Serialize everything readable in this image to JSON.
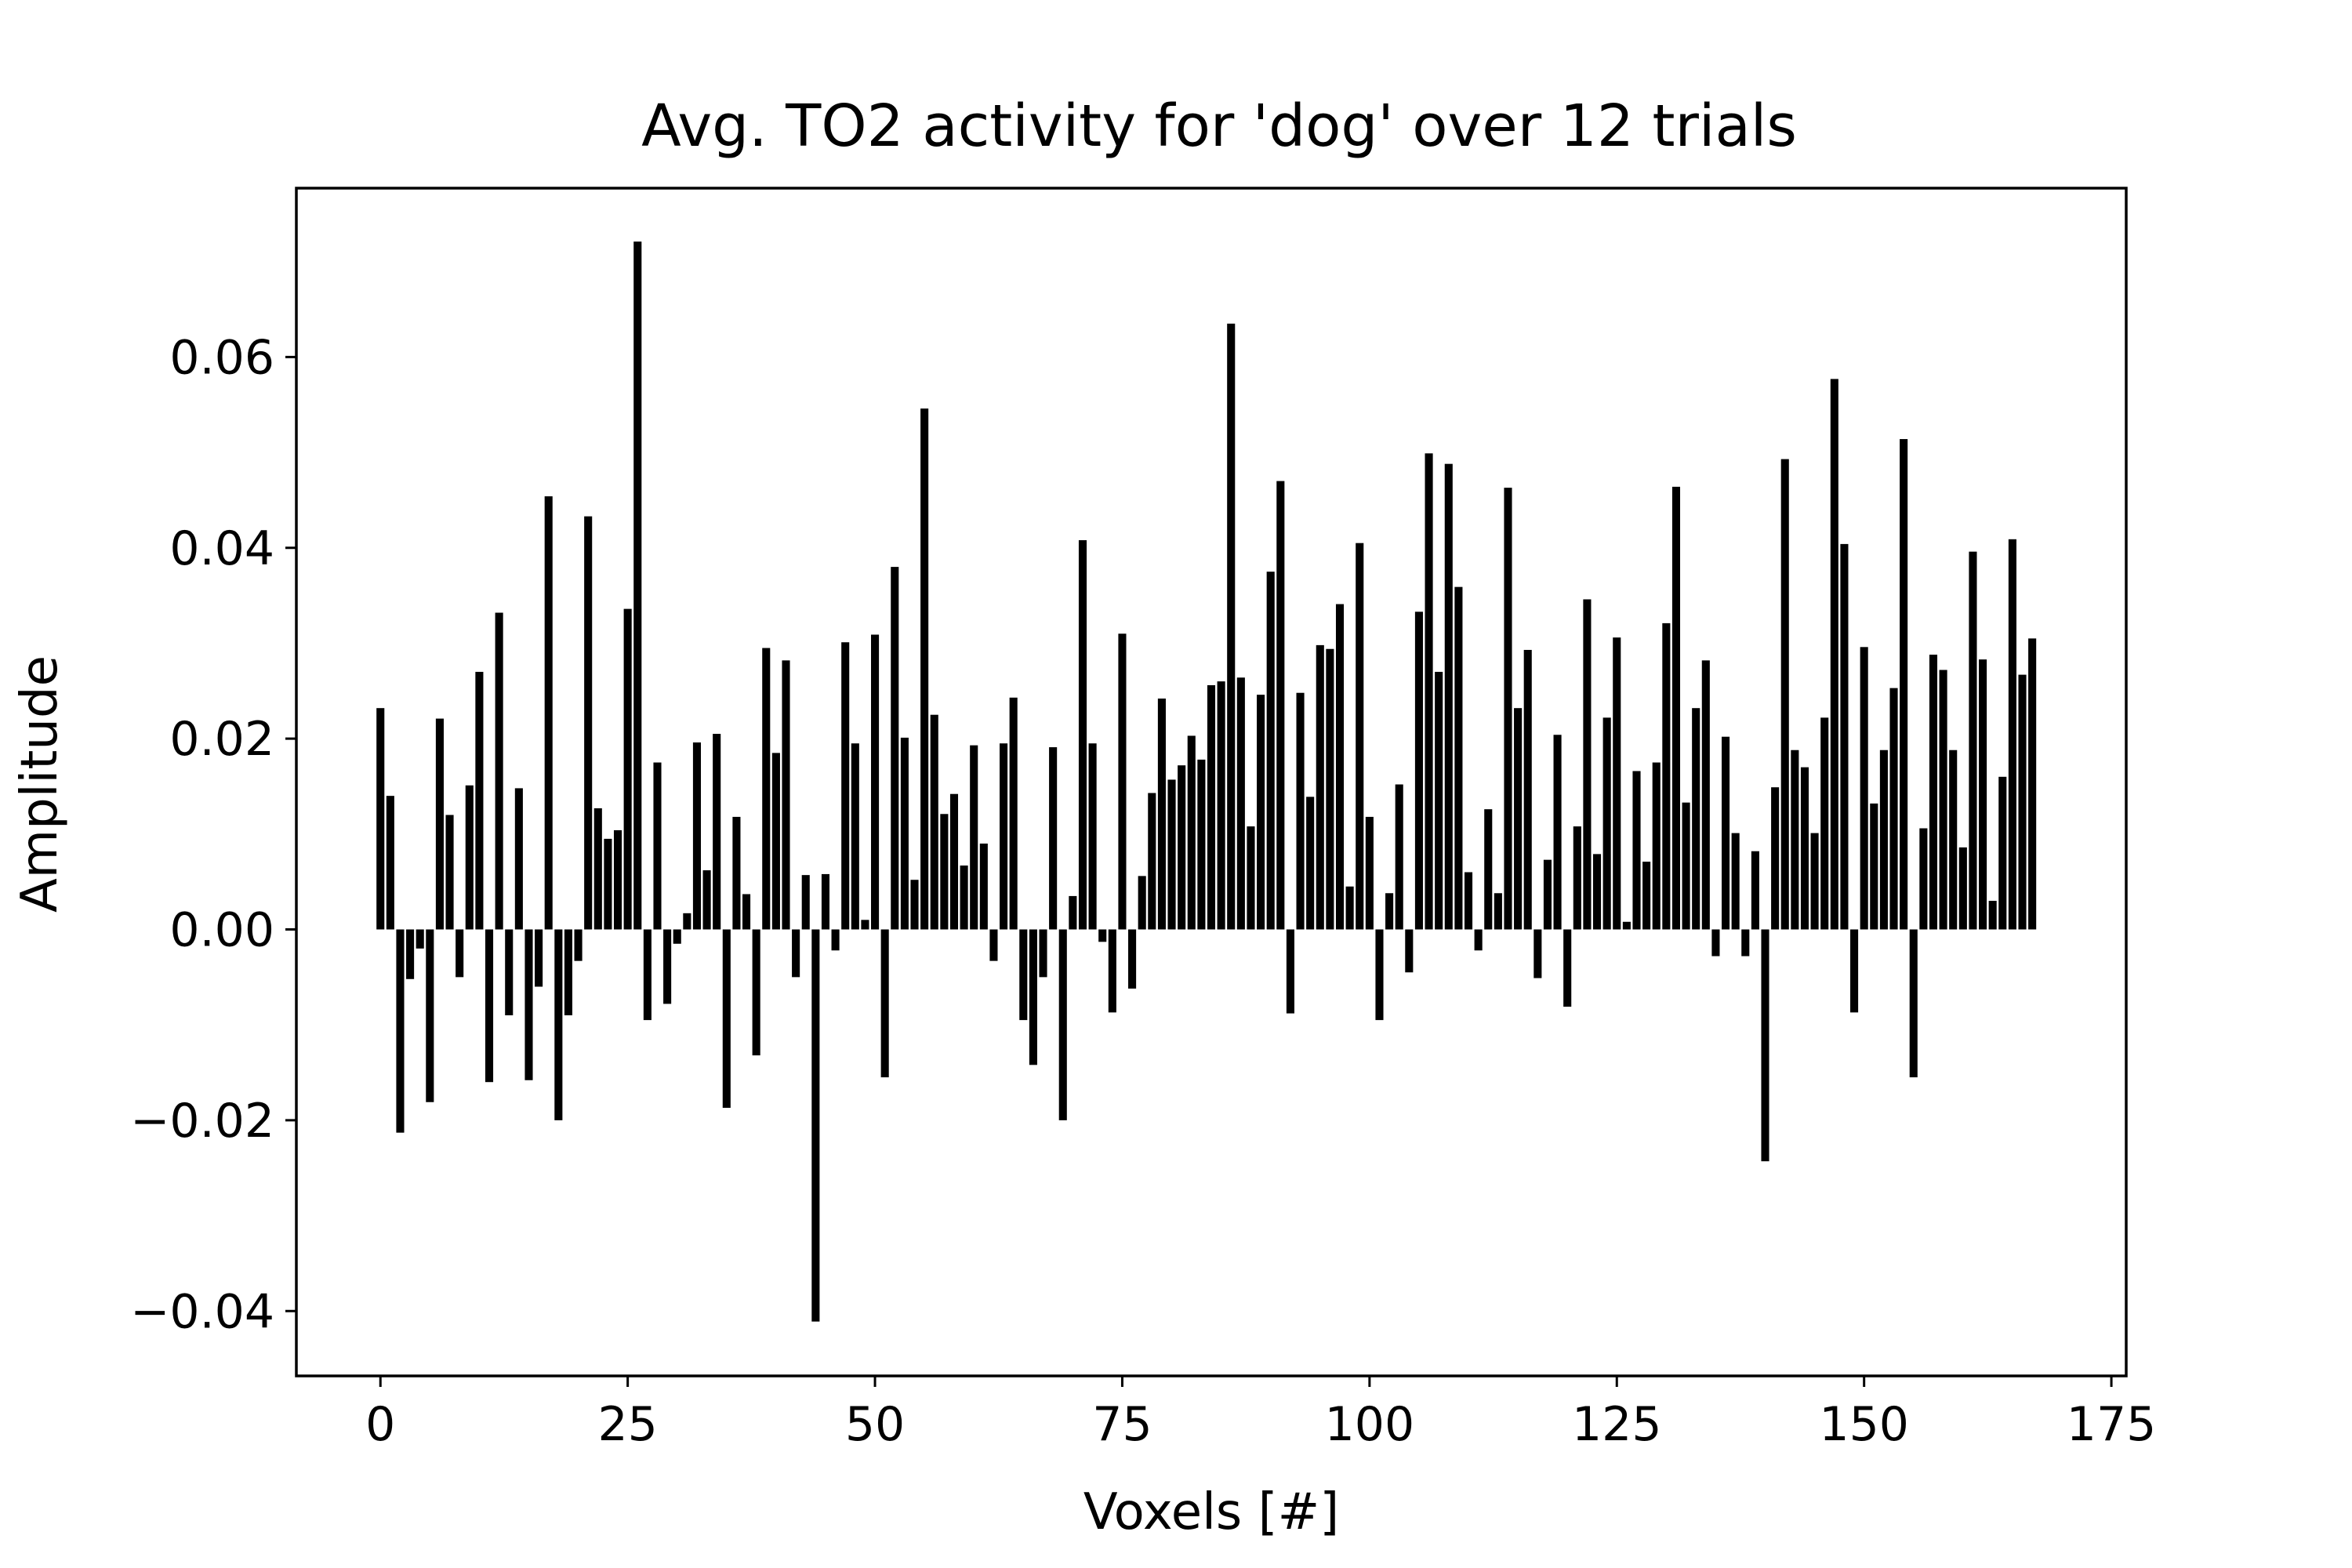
{
  "chart_data": {
    "type": "bar",
    "title": "Avg. TO2 activity for 'dog' over 12 trials",
    "xlabel": "Voxels [#]",
    "ylabel": "Amplitude",
    "xlim": [
      -8.5,
      176.5
    ],
    "ylim": [
      -0.0468,
      0.0777
    ],
    "x_ticks": [
      0,
      25,
      50,
      75,
      100,
      125,
      150,
      175
    ],
    "x_tick_labels": [
      "0",
      "25",
      "50",
      "75",
      "100",
      "125",
      "150",
      "175"
    ],
    "y_ticks": [
      -0.04,
      -0.02,
      0.0,
      0.02,
      0.04,
      0.06
    ],
    "y_tick_labels": [
      "−0.04",
      "−0.02",
      "0.00",
      "0.02",
      "0.04",
      "0.06"
    ],
    "grid": false,
    "bar_color": "#000000",
    "x": [
      0,
      1,
      2,
      3,
      4,
      5,
      6,
      7,
      8,
      9,
      10,
      11,
      12,
      13,
      14,
      15,
      16,
      17,
      18,
      19,
      20,
      21,
      22,
      23,
      24,
      25,
      26,
      27,
      28,
      29,
      30,
      31,
      32,
      33,
      34,
      35,
      36,
      37,
      38,
      39,
      40,
      41,
      42,
      43,
      44,
      45,
      46,
      47,
      48,
      49,
      50,
      51,
      52,
      53,
      54,
      55,
      56,
      57,
      58,
      59,
      60,
      61,
      62,
      63,
      64,
      65,
      66,
      67,
      68,
      69,
      70,
      71,
      72,
      73,
      74,
      75,
      76,
      77,
      78,
      79,
      80,
      81,
      82,
      83,
      84,
      85,
      86,
      87,
      88,
      89,
      90,
      91,
      92,
      93,
      94,
      95,
      96,
      97,
      98,
      99,
      100,
      101,
      102,
      103,
      104,
      105,
      106,
      107,
      108,
      109,
      110,
      111,
      112,
      113,
      114,
      115,
      116,
      117,
      118,
      119,
      120,
      121,
      122,
      123,
      124,
      125,
      126,
      127,
      128,
      129,
      130,
      131,
      132,
      133,
      134,
      135,
      136,
      137,
      138,
      139,
      140,
      141,
      142,
      143,
      144,
      145,
      146,
      147,
      148,
      149,
      150,
      151,
      152,
      153,
      154,
      155,
      156,
      157,
      158,
      159,
      160,
      161,
      162,
      163,
      164,
      165,
      166,
      167
    ],
    "values": [
      0.0232,
      0.014,
      -0.0213,
      -0.0052,
      -0.002,
      -0.0181,
      0.0221,
      0.012,
      -0.005,
      0.0151,
      0.027,
      -0.016,
      0.0332,
      -0.009,
      0.0148,
      -0.0158,
      -0.006,
      0.0454,
      -0.02,
      -0.009,
      -0.0033,
      0.0433,
      0.0127,
      0.0095,
      0.0104,
      0.0336,
      0.0721,
      -0.0095,
      0.0175,
      -0.0078,
      -0.0015,
      0.0017,
      0.0196,
      0.0062,
      0.0205,
      -0.0187,
      0.0118,
      0.0037,
      -0.0132,
      0.0295,
      0.0185,
      0.0282,
      -0.005,
      0.0057,
      -0.0411,
      0.0058,
      -0.0022,
      0.0301,
      0.0195,
      0.001,
      0.0309,
      -0.0155,
      0.038,
      0.0201,
      0.0052,
      0.0546,
      0.0225,
      0.0121,
      0.0142,
      0.0067,
      0.0193,
      0.009,
      -0.0033,
      0.0195,
      0.0243,
      -0.0095,
      -0.0142,
      -0.005,
      0.0191,
      -0.02,
      0.0035,
      0.0408,
      0.0195,
      -0.0013,
      -0.0087,
      0.031,
      -0.0062,
      0.0056,
      0.0143,
      0.0242,
      0.0157,
      0.0172,
      0.0203,
      0.0178,
      0.0256,
      0.026,
      0.0635,
      0.0264,
      0.0108,
      0.0246,
      0.0375,
      0.047,
      -0.0088,
      0.0248,
      0.0139,
      0.0298,
      0.0294,
      0.0341,
      0.0045,
      0.0405,
      0.0118,
      -0.0095,
      0.0038,
      0.0152,
      -0.0045,
      0.0333,
      0.0499,
      0.027,
      0.0488,
      0.0359,
      0.006,
      -0.0022,
      0.0126,
      0.0038,
      0.0463,
      0.0232,
      0.0293,
      -0.0051,
      0.0073,
      0.0204,
      -0.0081,
      0.0108,
      0.0346,
      0.0079,
      0.0222,
      0.0306,
      0.0008,
      0.0166,
      0.0071,
      0.0175,
      0.0321,
      0.0464,
      0.0133,
      0.0232,
      0.0282,
      -0.0028,
      0.0202,
      0.0101,
      -0.0028,
      0.0082,
      -0.0243,
      0.0149,
      0.0493,
      0.0188,
      0.017,
      0.0101,
      0.0222,
      0.0577,
      0.0404,
      -0.0087,
      0.0296,
      0.0132,
      0.0188,
      0.0253,
      0.0514,
      -0.0155,
      0.0106,
      0.0288,
      0.0272,
      0.0188,
      0.0086,
      0.0396,
      0.0283,
      0.003,
      0.016,
      0.0409,
      0.0267,
      0.0305
    ]
  }
}
